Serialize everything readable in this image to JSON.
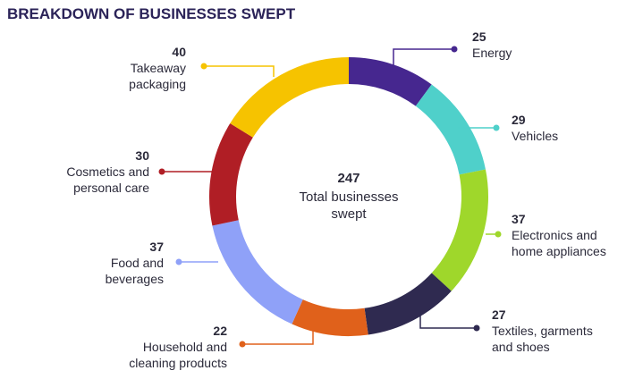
{
  "chart_data": {
    "type": "donut",
    "title": "BREAKDOWN OF BUSINESSES SWEPT",
    "total": 247,
    "total_label": "Total businesses swept",
    "categories": [
      "Energy",
      "Vehicles",
      "Electronics and home appliances",
      "Textiles, garments and shoes",
      "Household and cleaning products",
      "Food and beverages",
      "Cosmetics and personal care",
      "Takeaway packaging"
    ],
    "values": [
      25,
      29,
      37,
      27,
      22,
      37,
      30,
      40
    ],
    "colors": [
      "#46278f",
      "#4fd0ca",
      "#9fd72b",
      "#2f2a50",
      "#e0611b",
      "#8fa1f8",
      "#b01e25",
      "#f6c300"
    ]
  }
}
